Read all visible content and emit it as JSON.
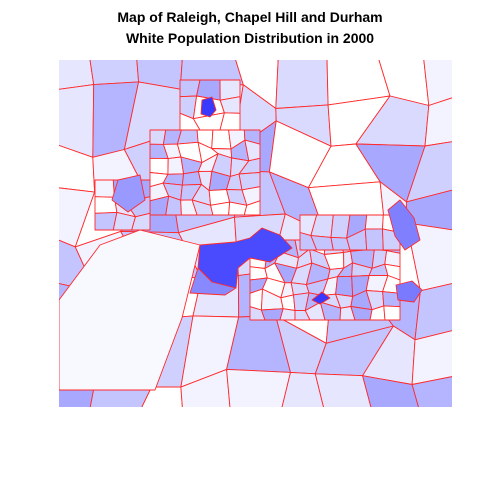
{
  "title": {
    "line1": "Map of Raleigh, Chapel Hill and Durham",
    "line2": "White Population Distribution in 2000"
  }
}
